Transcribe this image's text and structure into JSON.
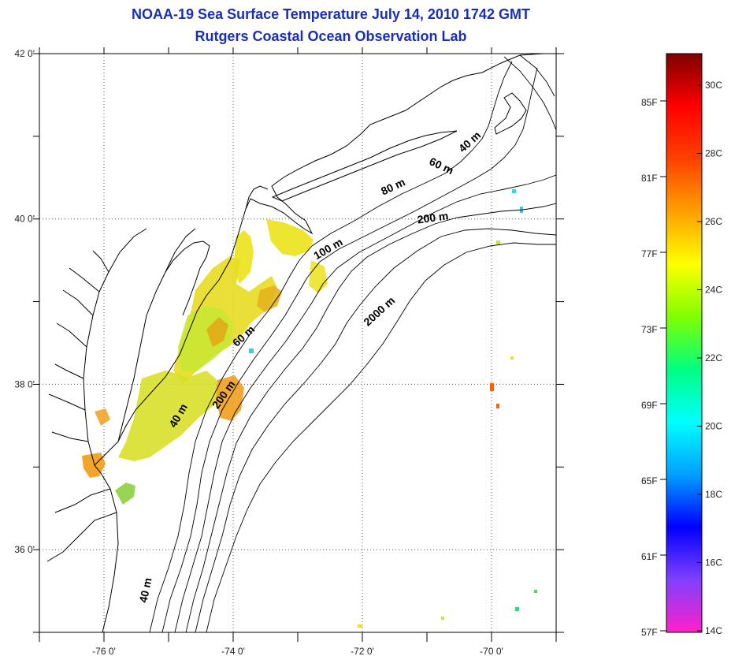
{
  "title": "NOAA-19 Sea Surface Temperature July 14, 2010 1742 GMT",
  "subtitle": "Rutgers Coastal Ocean Observation Lab",
  "map": {
    "lat_labels": [
      {
        "value": 42,
        "text": "42 0'"
      },
      {
        "value": 40,
        "text": "40 0'"
      },
      {
        "value": 38,
        "text": "38 0'"
      },
      {
        "value": 36,
        "text": "36 0'"
      }
    ],
    "lon_labels": [
      {
        "value": -76,
        "text": "-76 0'"
      },
      {
        "value": -74,
        "text": "-74 0'"
      },
      {
        "value": -72,
        "text": "-72 0'"
      },
      {
        "value": -70,
        "text": "-70 0'"
      }
    ],
    "lat_range": [
      35,
      42
    ],
    "lon_range": [
      -77,
      -69
    ],
    "contour_labels": [
      {
        "text": "40 m",
        "lon": -70.3,
        "lat": 40.9,
        "angle": -42
      },
      {
        "text": "60 m",
        "lon": -70.8,
        "lat": 40.6,
        "angle": 25
      },
      {
        "text": "80 m",
        "lon": -71.5,
        "lat": 40.35,
        "angle": -25
      },
      {
        "text": "200 m",
        "lon": -70.9,
        "lat": 39.97,
        "angle": -8
      },
      {
        "text": "100 m",
        "lon": -72.5,
        "lat": 39.6,
        "angle": -30
      },
      {
        "text": "2000 m",
        "lon": -71.7,
        "lat": 38.85,
        "angle": -42
      },
      {
        "text": "60 m",
        "lon": -73.8,
        "lat": 38.55,
        "angle": -42
      },
      {
        "text": "200 m",
        "lon": -74.1,
        "lat": 37.85,
        "angle": -55
      },
      {
        "text": "40 m",
        "lon": -74.8,
        "lat": 37.6,
        "angle": -60
      },
      {
        "text": "40 m",
        "lon": -75.3,
        "lat": 35.5,
        "angle": -78
      }
    ]
  },
  "colorbar": {
    "fahrenheit": [
      "85F",
      "81F",
      "77F",
      "73F",
      "69F",
      "65F",
      "61F",
      "57F"
    ],
    "celsius": [
      "30C",
      "28C",
      "26C",
      "24C",
      "22C",
      "20C",
      "18C",
      "16C",
      "14C"
    ],
    "colors": [
      "#ff20c8",
      "#8040ff",
      "#0000ff",
      "#00a0ff",
      "#00ffff",
      "#00ff80",
      "#80ff00",
      "#ffff00",
      "#ffa000",
      "#ff4000",
      "#ff0000",
      "#800000"
    ]
  },
  "palette": {
    "line": "#000000",
    "grid": "#555555",
    "sst_yellow": "#ebe21a",
    "sst_green": "#c8e632",
    "sst_orange": "#f0a020",
    "sst_cyan": "#40d0c0"
  }
}
